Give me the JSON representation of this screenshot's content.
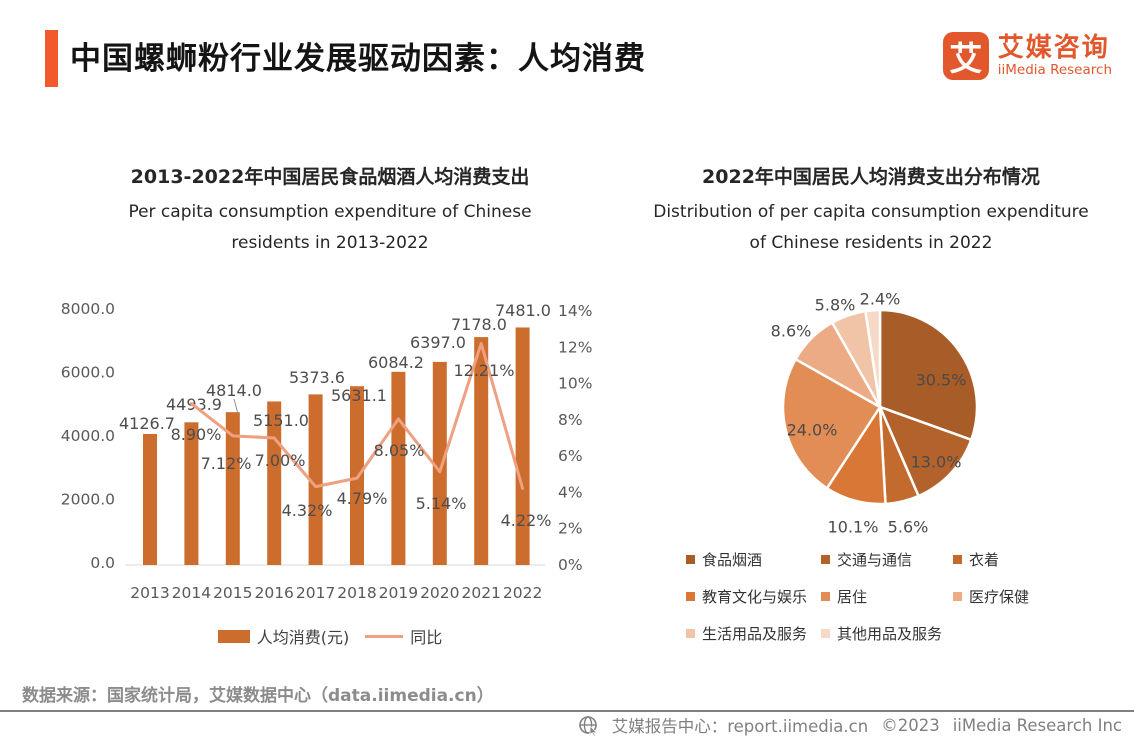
{
  "header": {
    "title": "中国螺蛳粉行业发展驱动因素：人均消费",
    "logo": {
      "mark": "艾",
      "brand_cn": "艾媒咨询",
      "brand_en": "iiMedia Research",
      "color": "#E2582C"
    }
  },
  "left_chart": {
    "title_cn": "2013-2022年中国居民食品烟酒人均消费支出",
    "title_en": [
      "Per capita consumption expenditure of Chinese",
      "residents in 2013-2022"
    ],
    "legend": [
      {
        "label": "人均消费(元)",
        "swatch": "bar",
        "color": "#CC6D2D"
      },
      {
        "label": "同比",
        "swatch": "line",
        "color": "#EEA081"
      }
    ]
  },
  "right_chart": {
    "title_cn": "2022年中国居民人均消费支出分布情况",
    "title_en": [
      "Distribution of per capita consumption expenditure",
      "of Chinese residents in 2022"
    ]
  },
  "chart_data": [
    {
      "type": "bar",
      "combo": "bar+line dual axis",
      "title": "2013-2022年中国居民食品烟酒人均消费支出",
      "categories": [
        "2013",
        "2014",
        "2015",
        "2016",
        "2017",
        "2018",
        "2019",
        "2020",
        "2021",
        "2022"
      ],
      "series": [
        {
          "name": "人均消费(元)",
          "type": "bar",
          "axis": "left",
          "color": "#CC6D2D",
          "values": [
            4126.7,
            4493.9,
            4814.0,
            5151.0,
            5373.6,
            5631.1,
            6084.2,
            6397.0,
            7178.0,
            7481.0
          ],
          "labels": [
            "4126.7",
            "4493.9",
            "4814.0",
            "5151.0",
            "5373.6",
            "5631.1",
            "6084.2",
            "6397.0",
            "7178.0",
            "7481.0"
          ]
        },
        {
          "name": "同比",
          "type": "line",
          "axis": "right",
          "color": "#EEA081",
          "values": [
            null,
            8.9,
            7.12,
            7.0,
            4.32,
            4.79,
            8.05,
            5.14,
            12.21,
            4.22
          ],
          "labels": [
            null,
            "8.90%",
            "7.12%",
            "7.00%",
            "4.32%",
            "4.79%",
            "8.05%",
            "5.14%",
            "12.21%",
            "4.22%"
          ]
        }
      ],
      "left_axis": {
        "min": 0,
        "max": 8000,
        "ticks": [
          "0.0",
          "2000.0",
          "4000.0",
          "6000.0",
          "8000.0"
        ]
      },
      "right_axis": {
        "min": 0,
        "max": 14,
        "ticks": [
          "0%",
          "2%",
          "4%",
          "6%",
          "8%",
          "10%",
          "12%",
          "14%"
        ]
      },
      "grid": false,
      "legend_position": "bottom"
    },
    {
      "type": "pie",
      "title": "2022年中国居民人均消费支出分布情况",
      "slices": [
        {
          "label": "食品烟酒",
          "value": 30.5,
          "text": "30.5%",
          "color": "#A85C28"
        },
        {
          "label": "交通与通信",
          "value": 13.0,
          "text": "13.0%",
          "color": "#B4622C"
        },
        {
          "label": "衣着",
          "value": 5.6,
          "text": "5.6%",
          "color": "#C36A2F"
        },
        {
          "label": "教育文化与娱乐",
          "value": 10.1,
          "text": "10.1%",
          "color": "#D97836"
        },
        {
          "label": "居住",
          "value": 24.0,
          "text": "24.0%",
          "color": "#E28D55"
        },
        {
          "label": "医疗保健",
          "value": 8.6,
          "text": "8.6%",
          "color": "#ECAB85"
        },
        {
          "label": "生活用品及服务",
          "value": 5.8,
          "text": "5.8%",
          "color": "#F2C4A7"
        },
        {
          "label": "其他用品及服务",
          "value": 2.4,
          "text": "2.4%",
          "color": "#F7D9C7"
        }
      ],
      "legend_position": "bottom"
    }
  ],
  "footer": {
    "source": "数据来源：国家统计局，艾媒数据中心（data.iimedia.cn）",
    "report": "艾媒报告中心：report.iimedia.cn",
    "copyright": "©2023",
    "company": "iiMedia Research  Inc"
  }
}
